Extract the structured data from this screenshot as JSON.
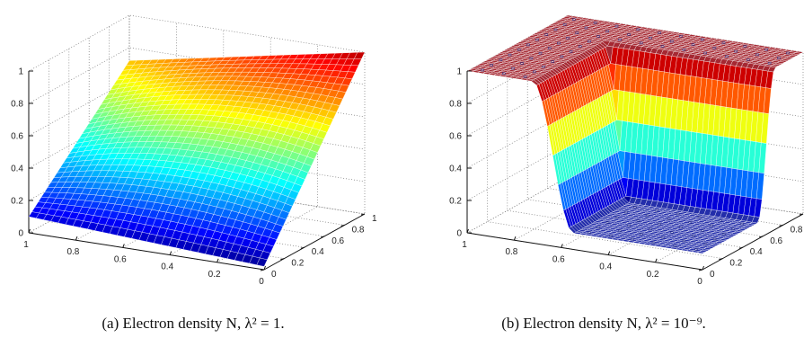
{
  "chart_data": [
    {
      "type": "surface",
      "x_ticks": [
        "0",
        "0.2",
        "0.4",
        "0.6",
        "0.8",
        "1"
      ],
      "y_ticks": [
        "0",
        "0.2",
        "0.4",
        "0.6",
        "0.8",
        "1"
      ],
      "z_ticks": [
        "0",
        "0.2",
        "0.4",
        "0.6",
        "0.8",
        "1"
      ],
      "xlim": [
        0,
        1
      ],
      "ylim": [
        0,
        1
      ],
      "zlim": [
        0,
        1
      ],
      "grid": true,
      "colormap": "jet",
      "caption": "(a) Electron density N, λ² = 1.",
      "surface": {
        "model": "smooth",
        "corners_z": {
          "x0_y0": 0.02,
          "x1_y0": 0.1,
          "x1_y1": 0.72,
          "x0_y1": 1.0
        }
      }
    },
    {
      "type": "surface",
      "x_ticks": [
        "0",
        "0.2",
        "0.4",
        "0.6",
        "0.8",
        "1"
      ],
      "y_ticks": [
        "0",
        "0.2",
        "0.4",
        "0.6",
        "0.8",
        "1"
      ],
      "z_ticks": [
        "0",
        "0.2",
        "0.4",
        "0.6",
        "0.8",
        "1"
      ],
      "xlim": [
        0,
        1
      ],
      "ylim": [
        0,
        1
      ],
      "zlim": [
        0,
        1
      ],
      "grid": true,
      "colormap": "jet",
      "caption": "(b) Electron density N, λ² = 10⁻⁹.",
      "surface": {
        "model": "step",
        "low_z": 0.1,
        "high_z": 1.0,
        "step_x_range": [
          0.55,
          0.72
        ],
        "step_y_range": [
          0.55,
          0.72
        ]
      }
    }
  ]
}
